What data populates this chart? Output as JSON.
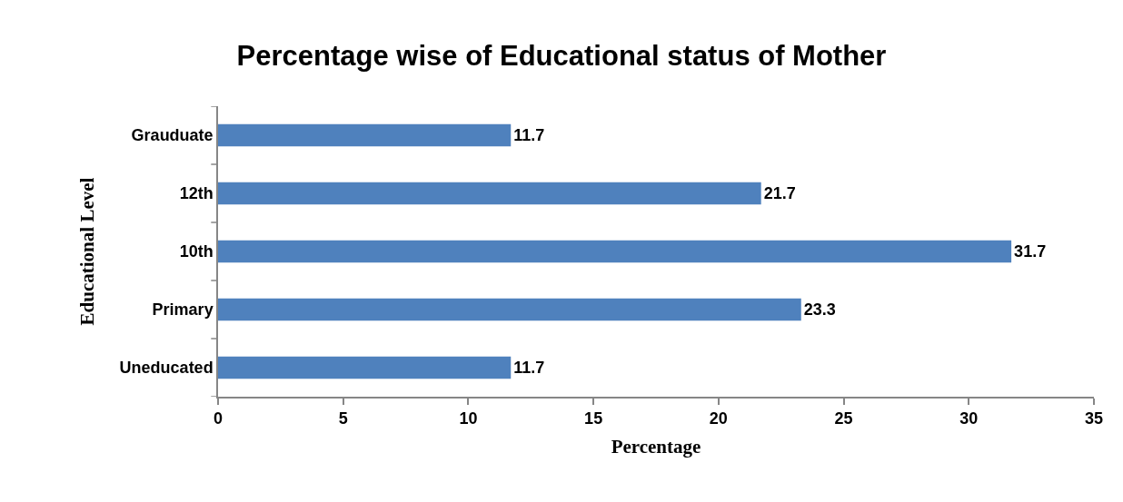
{
  "chart_data": {
    "type": "bar",
    "orientation": "horizontal",
    "title": "Percentage wise of Educational status of Mother",
    "xlabel": "Percentage",
    "ylabel": "Educational Level",
    "categories": [
      "Grauduate",
      "12th",
      "10th",
      "Primary",
      "Uneducated"
    ],
    "values": [
      11.7,
      21.7,
      31.7,
      23.3,
      11.7
    ],
    "color": "#4f81bd",
    "xlim": [
      0,
      35
    ],
    "xticks": [
      0,
      5,
      10,
      15,
      20,
      25,
      30,
      35
    ],
    "grid": false,
    "data_labels": true
  }
}
